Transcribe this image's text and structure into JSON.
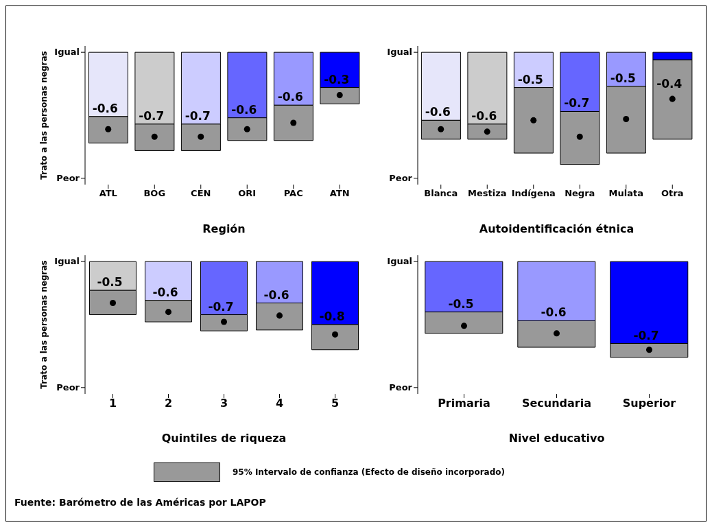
{
  "chart_data": [
    {
      "type": "bar",
      "stacked": true,
      "xlabel": "Región",
      "ylabel": "Trato a las personas negras",
      "categories": [
        "ATL",
        "BOG",
        "CEN",
        "ORI",
        "PAC",
        "ATN"
      ],
      "ylim": [
        -1.05,
        0.05
      ],
      "yticks": [
        {
          "value": 0,
          "label": null
        },
        {
          "value": -1,
          "label": null
        }
      ],
      "annotations": [
        "Igual",
        "Peor"
      ],
      "series": [
        {
          "type": "bar",
          "colors": [
            "#e6e6fa",
            "#cccccc",
            "#ccccff",
            "#6666ff",
            "#9999ff",
            "#0000ff"
          ],
          "values": [
            -0.51,
            -0.57,
            -0.57,
            -0.52,
            -0.42,
            -0.28
          ]
        },
        {
          "type": "bar",
          "color": "#999999",
          "values": [
            -0.21,
            -0.21,
            -0.21,
            -0.18,
            -0.28,
            -0.13
          ]
        },
        {
          "type": "scatter",
          "color": "#000000",
          "marker": "circle",
          "x": [
            "ATL",
            "BOG",
            "CEN",
            "ORI",
            "PAC",
            "ATN"
          ],
          "values": [
            -0.61,
            -0.67,
            -0.67,
            -0.61,
            -0.56,
            -0.34
          ],
          "value_labels": [
            "-0.6",
            "-0.7",
            "-0.7",
            "-0.6",
            "-0.6",
            "-0.3"
          ]
        }
      ]
    },
    {
      "type": "bar",
      "stacked": true,
      "xlabel": "Autoidentificación étnica",
      "categories": [
        "Blanca",
        "Mestiza",
        "Indígena",
        "Negra",
        "Mulata",
        "Otra"
      ],
      "ylim": [
        -1.05,
        0.05
      ],
      "yticks": [
        {
          "value": 0,
          "label": null
        },
        {
          "value": -1,
          "label": null
        }
      ],
      "annotations": [
        "Igual",
        "Peor"
      ],
      "series": [
        {
          "type": "bar",
          "colors": [
            "#e6e6fa",
            "#cccccc",
            "#ccccff",
            "#6666ff",
            "#9999ff",
            "#0000ff"
          ],
          "values": [
            -0.54,
            -0.57,
            -0.28,
            -0.47,
            -0.27,
            -0.06
          ]
        },
        {
          "type": "bar",
          "color": "#999999",
          "values": [
            -0.15,
            -0.12,
            -0.52,
            -0.42,
            -0.53,
            -0.63
          ]
        },
        {
          "type": "scatter",
          "color": "#000000",
          "marker": "circle",
          "x": [
            "Blanca",
            "Mestiza",
            "Indígena",
            "Negra",
            "Mulata",
            "Otra"
          ],
          "values": [
            -0.61,
            -0.63,
            -0.54,
            -0.67,
            -0.53,
            -0.37
          ],
          "value_labels": [
            "-0.6",
            "-0.6",
            "-0.5",
            "-0.7",
            "-0.5",
            "-0.4"
          ]
        }
      ]
    },
    {
      "type": "bar",
      "stacked": true,
      "xlabel": "Quintiles de riqueza",
      "ylabel": "Trato a las personas negras",
      "categories": [
        "1",
        "2",
        "3",
        "4",
        "5"
      ],
      "ylim": [
        -1.47,
        0.07
      ],
      "yticks": [
        {
          "value": 0,
          "label": null
        },
        {
          "value": -1.4,
          "label": null
        }
      ],
      "annotations": [
        "Igual",
        "Peor"
      ],
      "series": [
        {
          "type": "bar",
          "colors": [
            "#cccccc",
            "#ccccff",
            "#6666ff",
            "#9999ff",
            "#0000ff"
          ],
          "values": [
            -0.32,
            -0.43,
            -0.59,
            -0.46,
            -0.7
          ]
        },
        {
          "type": "bar",
          "color": "#999999",
          "values": [
            -0.27,
            -0.24,
            -0.18,
            -0.3,
            -0.28
          ]
        },
        {
          "type": "scatter",
          "color": "#000000",
          "marker": "circle",
          "x": [
            "1",
            "2",
            "3",
            "4",
            "5"
          ],
          "values": [
            -0.46,
            -0.56,
            -0.67,
            -0.6,
            -0.81
          ],
          "value_labels": [
            "-0.5",
            "-0.6",
            "-0.7",
            "-0.6",
            "-0.8"
          ]
        }
      ]
    },
    {
      "type": "bar",
      "stacked": true,
      "xlabel": "Nivel educativo",
      "categories": [
        "Primaria",
        "Secundaria",
        "Superior"
      ],
      "ylim": [
        -1.05,
        0.05
      ],
      "yticks": [
        {
          "value": 0,
          "label": null
        },
        {
          "value": -1,
          "label": null
        }
      ],
      "annotations": [
        "Igual",
        "Peor",
        "Fuente: Barómetro de las Américas por LAPOP"
      ],
      "legend": "bottom",
      "series": [
        {
          "type": "bar",
          "colors": [
            "#6666ff",
            "#9999ff",
            "#0000ff"
          ],
          "values": [
            -0.4,
            -0.47,
            -0.65
          ]
        },
        {
          "type": "bar",
          "name": "95% Intervalo de confianza (Efecto de diseño incorporado)",
          "color": "#999999",
          "values": [
            -0.17,
            -0.21,
            -0.11
          ]
        },
        {
          "type": "scatter",
          "color": "#000000",
          "marker": "circle",
          "x": [
            "Primaria",
            "Secundaria",
            "Superior"
          ],
          "values": [
            -0.51,
            -0.57,
            -0.7
          ],
          "value_labels": [
            "-0.5",
            "-0.6",
            "-0.7"
          ]
        }
      ]
    }
  ]
}
